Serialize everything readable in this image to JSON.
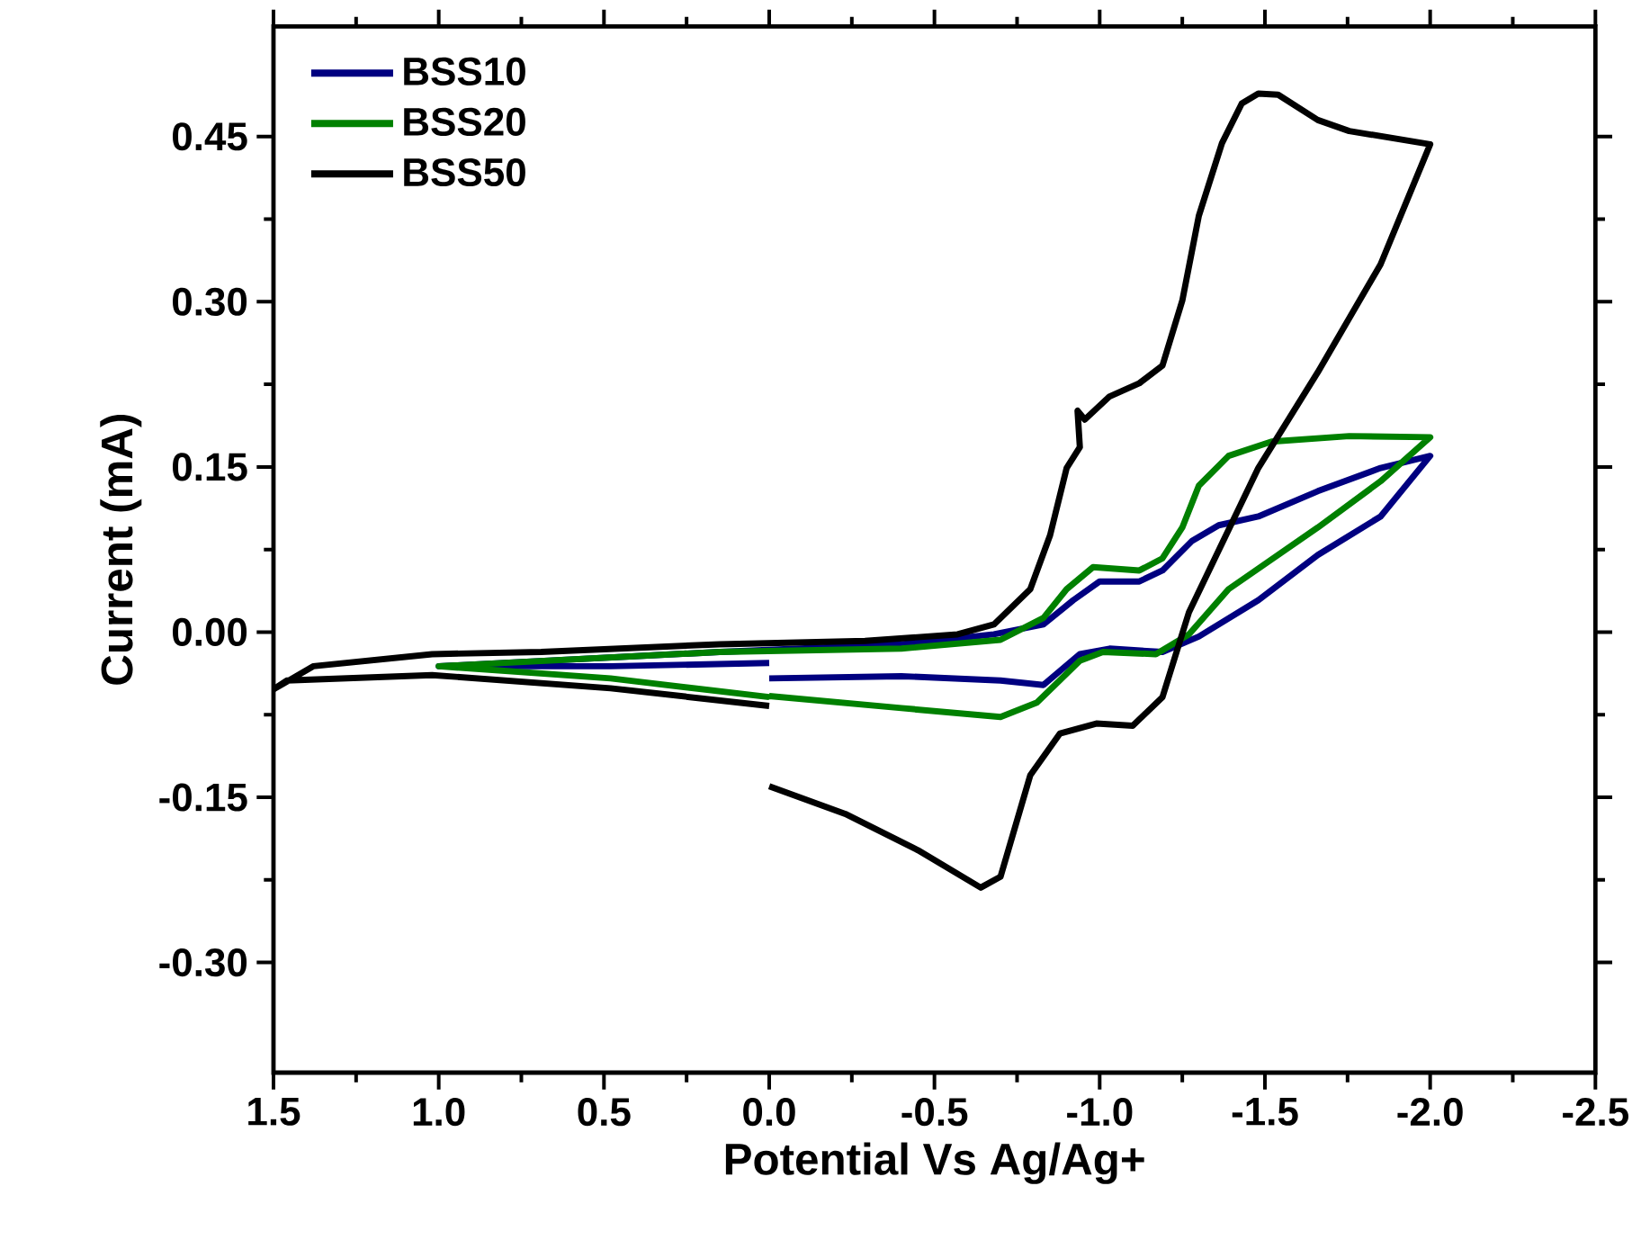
{
  "chart_data": {
    "type": "line",
    "xlabel": "Potential Vs Ag/Ag+",
    "ylabel": "Current (mA)",
    "xlim": [
      1.5,
      -2.5
    ],
    "ylim": [
      -0.4,
      0.55
    ],
    "xticks": [
      {
        "value": 1.5,
        "label": "1.5"
      },
      {
        "value": 1.0,
        "label": "1.0"
      },
      {
        "value": 0.5,
        "label": "0.5"
      },
      {
        "value": 0.0,
        "label": "0.0"
      },
      -0.5,
      {
        "value": -1.0,
        "label": "-1.0"
      },
      -1.5,
      {
        "value": -2.0,
        "label": "-2.0"
      },
      -2.5
    ],
    "yticks": [
      {
        "value": -0.3,
        "label": "-0.30"
      },
      -0.15,
      {
        "value": 0.0,
        "label": "0.00"
      },
      0.15,
      {
        "value": 0.3,
        "label": "0.30"
      },
      0.45
    ],
    "legend": "top left",
    "grid": false,
    "marker": "none",
    "line_style": "solid",
    "series": [
      {
        "name": "BSS10",
        "color": "#000080",
        "x": [
          0.0,
          -0.4,
          -0.7,
          -0.83,
          -0.94,
          -1.03,
          -1.19,
          -1.3,
          -1.48,
          -1.66,
          -1.85,
          -2.0,
          -1.85,
          -1.66,
          -1.48,
          -1.36,
          -1.28,
          -1.19,
          -1.12,
          -1.0,
          -0.92,
          -0.83,
          -0.68,
          -0.4,
          0.15,
          1.0,
          0.48,
          0.0
        ],
        "values": [
          -0.042,
          -0.04,
          -0.044,
          -0.048,
          -0.02,
          -0.015,
          -0.018,
          -0.004,
          0.029,
          0.07,
          0.105,
          0.16,
          0.149,
          0.128,
          0.105,
          0.097,
          0.083,
          0.056,
          0.046,
          0.046,
          0.029,
          0.007,
          -0.002,
          -0.011,
          -0.018,
          -0.031,
          -0.031,
          -0.028
        ]
      },
      {
        "name": "BSS20",
        "color": "#008000",
        "x": [
          0.0,
          -0.4,
          -0.7,
          -0.81,
          -0.94,
          -1.01,
          -1.17,
          -1.27,
          -1.39,
          -1.66,
          -1.85,
          -2.0,
          -1.755,
          -1.52,
          -1.39,
          -1.3,
          -1.25,
          -1.19,
          -1.12,
          -0.98,
          -0.9,
          -0.83,
          -0.7,
          -0.4,
          0.15,
          1.0,
          0.48,
          0.0
        ],
        "values": [
          -0.058,
          -0.069,
          -0.077,
          -0.064,
          -0.026,
          -0.018,
          -0.02,
          -0.002,
          0.039,
          0.095,
          0.137,
          0.177,
          0.178,
          0.173,
          0.16,
          0.133,
          0.095,
          0.067,
          0.056,
          0.059,
          0.039,
          0.013,
          -0.007,
          -0.015,
          -0.018,
          -0.031,
          -0.042,
          -0.059
        ]
      },
      {
        "name": "BSS50",
        "color": "#000000",
        "x": [
          0.0,
          -0.23,
          -0.45,
          -0.64,
          -0.7,
          -0.79,
          -0.88,
          -0.99,
          -1.1,
          -1.19,
          -1.27,
          -1.48,
          -1.66,
          -1.85,
          -2.0,
          -1.755,
          -1.66,
          -1.54,
          -1.48,
          -1.43,
          -1.37,
          -1.3,
          -1.25,
          -1.19,
          -1.12,
          -1.03,
          -0.955,
          -0.933,
          -0.94,
          -0.9,
          -0.85,
          -0.79,
          -0.68,
          -0.57,
          -0.29,
          0.15,
          0.69,
          1.02,
          1.38,
          1.5,
          1.46,
          1.02,
          0.48,
          0.0
        ],
        "values": [
          -0.14,
          -0.165,
          -0.198,
          -0.232,
          -0.222,
          -0.13,
          -0.092,
          -0.083,
          -0.085,
          -0.059,
          0.018,
          0.149,
          0.236,
          0.334,
          0.443,
          0.455,
          0.465,
          0.488,
          0.489,
          0.48,
          0.444,
          0.378,
          0.301,
          0.242,
          0.226,
          0.214,
          0.193,
          0.201,
          0.168,
          0.149,
          0.088,
          0.039,
          0.007,
          -0.002,
          -0.008,
          -0.011,
          -0.018,
          -0.02,
          -0.031,
          -0.052,
          -0.044,
          -0.039,
          -0.051,
          -0.067
        ]
      }
    ]
  }
}
